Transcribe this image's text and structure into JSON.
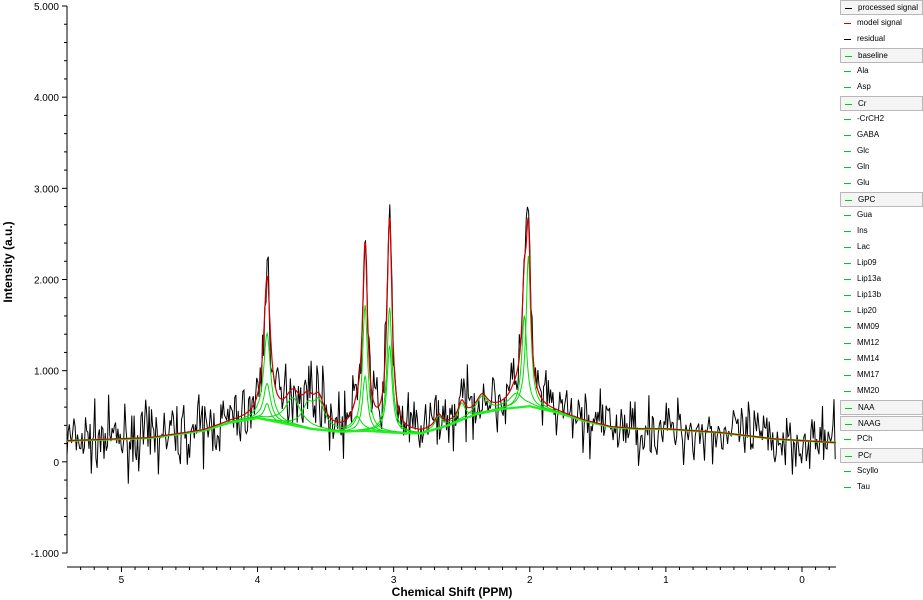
{
  "chart_data": {
    "type": "line",
    "xlabel": "Chemical Shift (PPM)",
    "ylabel": "Intensity (a.u.)",
    "xlim": [
      5.4,
      -0.25
    ],
    "ylim": [
      -1.0,
      5.0
    ],
    "x_ticks": [
      {
        "value": 5,
        "label": "5"
      },
      {
        "value": 4,
        "label": "4"
      },
      {
        "value": 3,
        "label": "3"
      },
      {
        "value": 2,
        "label": "2"
      },
      {
        "value": 1,
        "label": "1"
      },
      {
        "value": 0,
        "label": "0"
      }
    ],
    "y_ticks": [
      {
        "value": 5,
        "label": "5.000"
      },
      {
        "value": 4,
        "label": "4.000"
      },
      {
        "value": 3,
        "label": "3.000"
      },
      {
        "value": 2,
        "label": "2.000"
      },
      {
        "value": 1,
        "label": "1.000"
      },
      {
        "value": 0,
        "label": "0"
      },
      {
        "value": -1,
        "label": "-1.000"
      }
    ],
    "colors": {
      "processed": "#000000",
      "model": "#cc0000",
      "residual": "#000000",
      "metabolite": "#00dd00",
      "baseline": "#22ee22"
    },
    "series": [
      {
        "name": "processed signal",
        "noise_sd": 0.17
      },
      {
        "name": "model signal",
        "noise_sd": 0.0
      },
      {
        "name": "baseline",
        "x": [
          5.4,
          4.8,
          4.4,
          4.2,
          4.0,
          3.8,
          3.6,
          3.4,
          3.2,
          3.0,
          2.8,
          2.6,
          2.4,
          2.2,
          2.0,
          1.8,
          1.6,
          1.4,
          1.2,
          1.0,
          0.6,
          0.2,
          -0.25
        ],
        "y": [
          0.23,
          0.26,
          0.34,
          0.43,
          0.48,
          0.42,
          0.36,
          0.33,
          0.34,
          0.32,
          0.31,
          0.4,
          0.52,
          0.58,
          0.61,
          0.54,
          0.45,
          0.38,
          0.36,
          0.36,
          0.32,
          0.25,
          0.21
        ]
      },
      {
        "name": "Cr",
        "peaks": [
          {
            "x": 3.03,
            "h": 1.37,
            "w": 0.022
          }
        ]
      },
      {
        "name": "-CrCH2",
        "peaks": [
          {
            "x": 3.93,
            "h": 0.95,
            "w": 0.03
          }
        ]
      },
      {
        "name": "GPC",
        "peaks": [
          {
            "x": 3.21,
            "h": 1.38,
            "w": 0.022
          },
          {
            "x": 3.93,
            "h": 0.18,
            "w": 0.025
          }
        ]
      },
      {
        "name": "PCh",
        "peaks": [
          {
            "x": 3.21,
            "h": 0.6,
            "w": 0.022
          }
        ]
      },
      {
        "name": "PCr",
        "peaks": [
          {
            "x": 3.03,
            "h": 0.95,
            "w": 0.022
          },
          {
            "x": 3.93,
            "h": 0.4,
            "w": 0.03
          }
        ]
      },
      {
        "name": "Ins",
        "peaks": [
          {
            "x": 3.55,
            "h": 0.28,
            "w": 0.05
          },
          {
            "x": 3.63,
            "h": 0.22,
            "w": 0.05
          },
          {
            "x": 3.27,
            "h": 0.15,
            "w": 0.04
          }
        ]
      },
      {
        "name": "Glu",
        "peaks": [
          {
            "x": 3.74,
            "h": 0.3,
            "w": 0.07
          },
          {
            "x": 2.35,
            "h": 0.18,
            "w": 0.05
          },
          {
            "x": 2.1,
            "h": 0.15,
            "w": 0.06
          }
        ]
      },
      {
        "name": "NAA",
        "peaks": [
          {
            "x": 2.01,
            "h": 1.65,
            "w": 0.02
          },
          {
            "x": 2.5,
            "h": 0.18,
            "w": 0.03
          },
          {
            "x": 2.67,
            "h": 0.13,
            "w": 0.03
          }
        ]
      },
      {
        "name": "NAAG",
        "peaks": [
          {
            "x": 2.04,
            "h": 1.0,
            "w": 0.022
          }
        ]
      }
    ],
    "legend": {
      "placement": "right",
      "items": [
        {
          "label": "processed signal",
          "color": "#000000",
          "selected": true
        },
        {
          "label": "model signal",
          "color": "#cc0000",
          "selected": false
        },
        {
          "label": "residual",
          "color": "#000000",
          "selected": false
        },
        {
          "label": "baseline",
          "color": "#00cc00",
          "selected": true
        },
        {
          "label": "Ala",
          "color": "#00cc00",
          "selected": false
        },
        {
          "label": "Asp",
          "color": "#00cc00",
          "selected": false
        },
        {
          "label": "Cr",
          "color": "#00cc00",
          "selected": true
        },
        {
          "label": "-CrCH2",
          "color": "#00cc00",
          "selected": false
        },
        {
          "label": "GABA",
          "color": "#00cc00",
          "selected": false
        },
        {
          "label": "Glc",
          "color": "#00cc00",
          "selected": false
        },
        {
          "label": "Gln",
          "color": "#00cc00",
          "selected": false
        },
        {
          "label": "Glu",
          "color": "#00cc00",
          "selected": false
        },
        {
          "label": "GPC",
          "color": "#00cc00",
          "selected": true
        },
        {
          "label": "Gua",
          "color": "#00cc00",
          "selected": false
        },
        {
          "label": "Ins",
          "color": "#00cc00",
          "selected": false
        },
        {
          "label": "Lac",
          "color": "#00cc00",
          "selected": false
        },
        {
          "label": "Lip09",
          "color": "#00cc00",
          "selected": false
        },
        {
          "label": "Lip13a",
          "color": "#00cc00",
          "selected": false
        },
        {
          "label": "Lip13b",
          "color": "#00cc00",
          "selected": false
        },
        {
          "label": "Lip20",
          "color": "#00cc00",
          "selected": false
        },
        {
          "label": "MM09",
          "color": "#00cc00",
          "selected": false
        },
        {
          "label": "MM12",
          "color": "#00cc00",
          "selected": false
        },
        {
          "label": "MM14",
          "color": "#00cc00",
          "selected": false
        },
        {
          "label": "MM17",
          "color": "#00cc00",
          "selected": false
        },
        {
          "label": "MM20",
          "color": "#00cc00",
          "selected": false
        },
        {
          "label": "NAA",
          "color": "#00cc00",
          "selected": true
        },
        {
          "label": "NAAG",
          "color": "#00cc00",
          "selected": true
        },
        {
          "label": "PCh",
          "color": "#00cc00",
          "selected": false
        },
        {
          "label": "PCr",
          "color": "#00cc00",
          "selected": true
        },
        {
          "label": "Scyllo",
          "color": "#00cc00",
          "selected": false
        },
        {
          "label": "Tau",
          "color": "#00cc00",
          "selected": false
        }
      ]
    }
  }
}
